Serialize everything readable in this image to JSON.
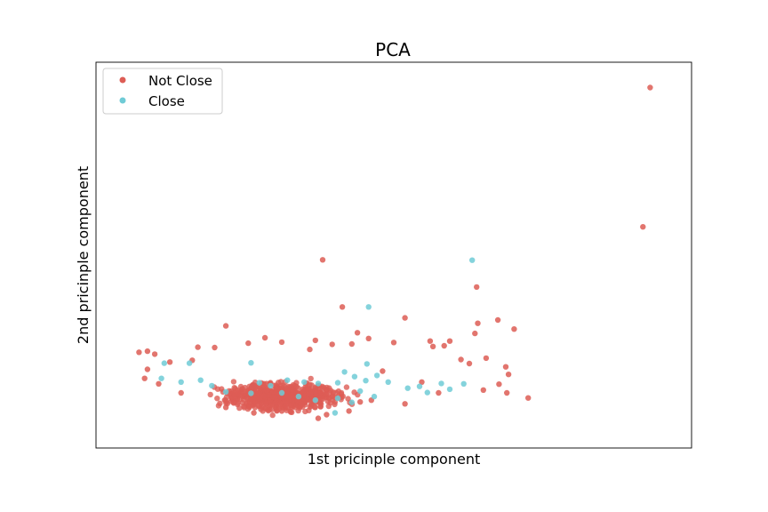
{
  "chart_data": {
    "type": "scatter",
    "title": "PCA",
    "xlabel": "1st pricinple component",
    "ylabel": "2nd pricinple component",
    "xlim": [
      0,
      100
    ],
    "ylim": [
      0,
      100
    ],
    "grid": false,
    "ticks_visible": false,
    "legend_position": "top-left",
    "series": [
      {
        "name": "Not Close",
        "color": "#dd5d55",
        "points": [
          [
            95.8,
            96.2
          ],
          [
            94.5,
            57.8
          ],
          [
            37.3,
            48.7
          ],
          [
            64.8,
            41.2
          ],
          [
            40.8,
            35.7
          ],
          [
            65.0,
            31.2
          ],
          [
            68.6,
            32.1
          ],
          [
            71.5,
            29.6
          ],
          [
            52.0,
            32.7
          ],
          [
            36.0,
            26.5
          ],
          [
            27.0,
            27.2
          ],
          [
            43.5,
            28.6
          ],
          [
            56.5,
            26.3
          ],
          [
            60.0,
            26.3
          ],
          [
            64.5,
            28.4
          ],
          [
            66.5,
            21.6
          ],
          [
            70.0,
            19.2
          ],
          [
            70.5,
            17.1
          ],
          [
            74.0,
            10.6
          ],
          [
            4.5,
            23.2
          ],
          [
            6.0,
            23.5
          ],
          [
            7.3,
            22.7
          ],
          [
            15.0,
            24.6
          ],
          [
            20.0,
            30.5
          ],
          [
            18.0,
            24.5
          ],
          [
            24.0,
            25.7
          ],
          [
            30.0,
            26.0
          ],
          [
            35.0,
            24.0
          ],
          [
            39.0,
            25.4
          ],
          [
            42.5,
            25.5
          ],
          [
            45.5,
            27.0
          ],
          [
            50.0,
            25.9
          ],
          [
            57.0,
            24.8
          ],
          [
            59.0,
            25.0
          ],
          [
            62.0,
            21.2
          ],
          [
            63.5,
            20.1
          ],
          [
            66.0,
            12.8
          ],
          [
            68.8,
            14.4
          ],
          [
            70.2,
            12.0
          ],
          [
            44.0,
            9.5
          ],
          [
            36.5,
            5.0
          ],
          [
            38.0,
            6.0
          ],
          [
            30.0,
            7.0
          ],
          [
            25.0,
            6.5
          ],
          [
            20.0,
            8.0
          ],
          [
            12.0,
            12.0
          ],
          [
            8.0,
            14.5
          ],
          [
            5.5,
            16.0
          ],
          [
            6.0,
            18.5
          ],
          [
            10.0,
            20.5
          ],
          [
            14.0,
            21.0
          ],
          [
            48.0,
            18.0
          ],
          [
            55.0,
            15.0
          ],
          [
            58.0,
            12.0
          ],
          [
            52.0,
            9.0
          ],
          [
            46.0,
            10.0
          ],
          [
            42.0,
            7.0
          ]
        ]
      },
      {
        "name": "Close",
        "color": "#6fcbd6",
        "points": [
          [
            64.0,
            48.6
          ],
          [
            45.5,
            35.7
          ],
          [
            45.2,
            20.0
          ],
          [
            24.5,
            20.3
          ],
          [
            26.0,
            14.8
          ],
          [
            28.0,
            14.0
          ],
          [
            31.0,
            15.5
          ],
          [
            34.0,
            15.0
          ],
          [
            36.5,
            14.6
          ],
          [
            40.0,
            14.8
          ],
          [
            41.2,
            17.8
          ],
          [
            43.0,
            16.5
          ],
          [
            45.0,
            15.4
          ],
          [
            47.0,
            16.8
          ],
          [
            49.0,
            15.0
          ],
          [
            52.5,
            13.3
          ],
          [
            54.6,
            13.8
          ],
          [
            58.5,
            14.6
          ],
          [
            62.5,
            14.5
          ],
          [
            60.0,
            13.0
          ],
          [
            56.0,
            12.1
          ],
          [
            46.5,
            11.0
          ],
          [
            44.0,
            12.5
          ],
          [
            40.0,
            10.5
          ],
          [
            42.5,
            9.4
          ],
          [
            39.5,
            6.5
          ],
          [
            36.0,
            10.0
          ],
          [
            33.0,
            11.0
          ],
          [
            30.0,
            12.0
          ],
          [
            24.5,
            11.9
          ],
          [
            20.0,
            12.3
          ],
          [
            17.5,
            14.0
          ],
          [
            15.5,
            15.5
          ],
          [
            13.5,
            20.2
          ],
          [
            9.0,
            20.2
          ],
          [
            8.5,
            16.0
          ],
          [
            12.0,
            15.0
          ]
        ]
      }
    ]
  }
}
